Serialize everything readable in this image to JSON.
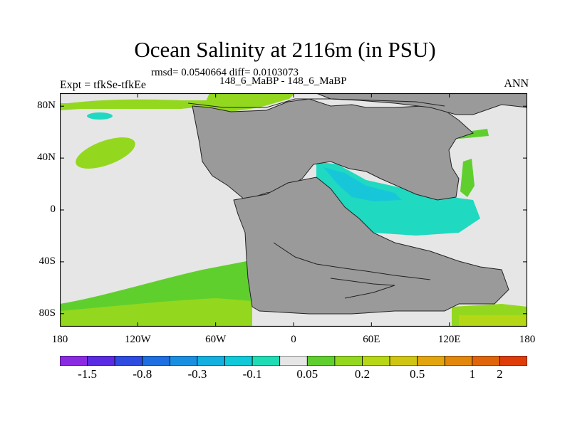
{
  "title": "Ocean Salinity at 2116m (in PSU)",
  "stats": "rmsd= 0.0540664 diff= 0.0103073",
  "expt": "Expt = tfkSe-tfkEe",
  "subtitle": "148_6_MaBP - 148_6_MaBP",
  "period": "ANN",
  "map": {
    "projection": "cylindrical-equidistant",
    "lon_range": [
      -180,
      180
    ],
    "lat_range": [
      -90,
      90
    ],
    "colors": {
      "land": "#9a9a9a",
      "near_zero": "#e6e6e6",
      "pos_small": "#5fcf2e",
      "pos_mid": "#93d81e",
      "pos_high": "#b6d716",
      "neg_small": "#20d9c1",
      "neg_mid": "#17c7d9"
    },
    "x_ticks": [
      {
        "value": -180,
        "label": "180"
      },
      {
        "value": -120,
        "label": "120W"
      },
      {
        "value": -60,
        "label": "60W"
      },
      {
        "value": 0,
        "label": "0"
      },
      {
        "value": 60,
        "label": "60E"
      },
      {
        "value": 120,
        "label": "120E"
      },
      {
        "value": 180,
        "label": "180"
      }
    ],
    "y_ticks": [
      {
        "value": 80,
        "label": "80N"
      },
      {
        "value": 40,
        "label": "40N"
      },
      {
        "value": 0,
        "label": "0"
      },
      {
        "value": -40,
        "label": "40S"
      },
      {
        "value": -80,
        "label": "80S"
      }
    ]
  },
  "colorbar": {
    "colors": [
      "#8a2be2",
      "#5a2be2",
      "#2f4ce0",
      "#1f6fe0",
      "#1a8fe0",
      "#13b0e0",
      "#10c9d9",
      "#1fdcb4",
      "#e6e6e6",
      "#5fcf2e",
      "#93d81e",
      "#b6d716",
      "#d0c512",
      "#e3a50e",
      "#e3870c",
      "#e0650a",
      "#de3c08"
    ],
    "labels": [
      {
        "after_box": 2,
        "text": "-1.5"
      },
      {
        "after_box": 4,
        "text": "-0.8"
      },
      {
        "after_box": 6,
        "text": "-0.3"
      },
      {
        "after_box": 8,
        "text": "-0.1"
      },
      {
        "after_box": 10,
        "text": "0.05"
      },
      {
        "after_box": 12,
        "text": "0.2"
      },
      {
        "after_box": 14,
        "text": "0.5"
      },
      {
        "after_box": 16,
        "text": "1"
      },
      {
        "after_box": 18,
        "text": "2"
      }
    ]
  }
}
